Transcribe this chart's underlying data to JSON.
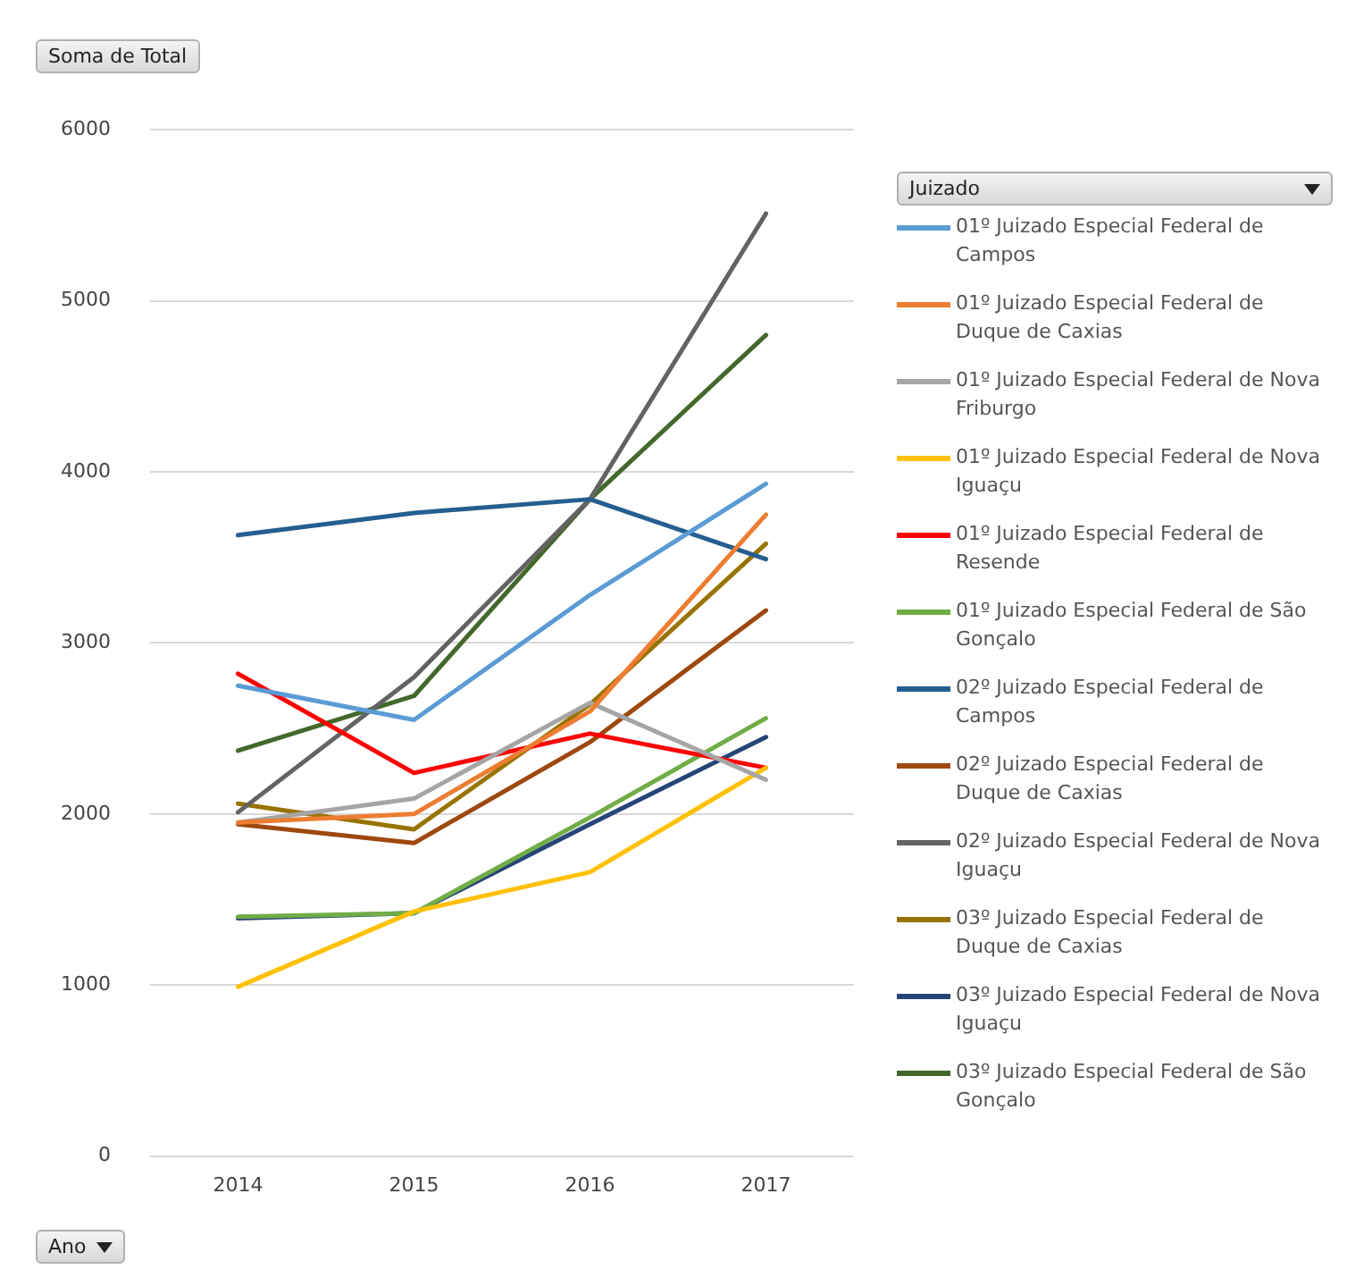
{
  "chart_data": {
    "type": "line",
    "ylabel": "Soma de Total",
    "xlabel": "Ano",
    "legend_title": "Juizado",
    "categories": [
      "2014",
      "2015",
      "2016",
      "2017"
    ],
    "ylim": [
      0,
      6000
    ],
    "yticks": [
      0,
      1000,
      2000,
      3000,
      4000,
      5000,
      6000
    ],
    "grid": "y",
    "legend": "right",
    "marker": "none",
    "line_style": "solid",
    "series": [
      {
        "name": "01º Juizado Especial Federal de Campos",
        "color": "#5b9bd5",
        "values": [
          2750,
          2550,
          3280,
          3930
        ]
      },
      {
        "name": "01º Juizado Especial Federal de Duque de Caxias",
        "color": "#ed7d31",
        "values": [
          1950,
          2000,
          2600,
          3750
        ]
      },
      {
        "name": "01º Juizado Especial Federal de Nova Friburgo",
        "color": "#a5a5a5",
        "values": [
          1950,
          2090,
          2650,
          2200
        ]
      },
      {
        "name": "01º Juizado Especial Federal de Nova Iguaçu",
        "color": "#ffc000",
        "values": [
          990,
          1430,
          1660,
          2270
        ]
      },
      {
        "name": "01º Juizado Especial Federal de Resende",
        "color": "#ff0000",
        "values": [
          2820,
          2240,
          2470,
          2270
        ]
      },
      {
        "name": "01º Juizado Especial Federal de São Gonçalo",
        "color": "#70ad47",
        "values": [
          1400,
          1420,
          1980,
          2560
        ]
      },
      {
        "name": "02º Juizado Especial Federal de Campos",
        "color": "#255e91",
        "values": [
          3630,
          3760,
          3840,
          3490
        ]
      },
      {
        "name": "02º Juizado Especial Federal de Duque de Caxias",
        "color": "#9e480e",
        "values": [
          1940,
          1830,
          2420,
          3190
        ]
      },
      {
        "name": "02º Juizado Especial Federal de Nova Iguaçu",
        "color": "#636363",
        "values": [
          2010,
          2800,
          3840,
          5510
        ]
      },
      {
        "name": "03º Juizado Especial Federal de Duque de Caxias",
        "color": "#997300",
        "values": [
          2060,
          1910,
          2640,
          3580
        ]
      },
      {
        "name": "03º Juizado Especial Federal de Nova Iguaçu",
        "color": "#264478",
        "values": [
          1390,
          1420,
          1940,
          2450
        ]
      },
      {
        "name": "03º Juizado Especial Federal de São Gonçalo",
        "color": "#43682b",
        "values": [
          2370,
          2690,
          3840,
          4800
        ]
      }
    ]
  }
}
